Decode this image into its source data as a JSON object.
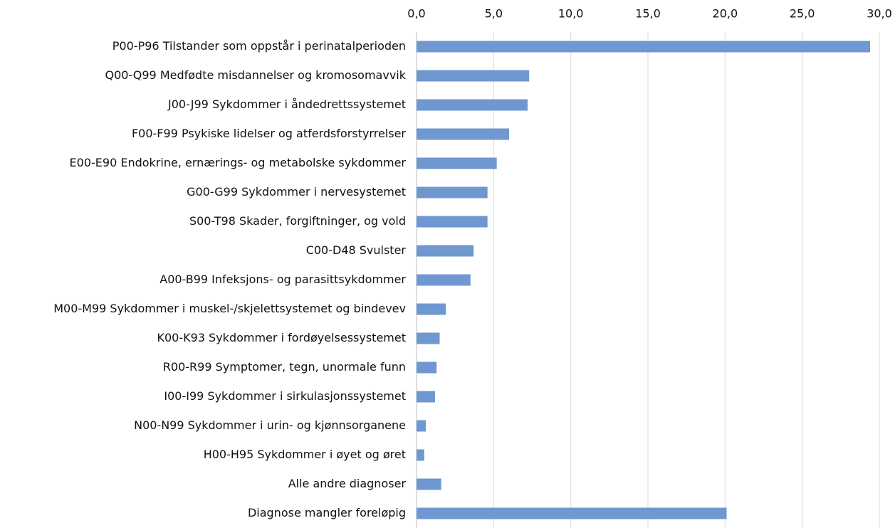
{
  "chart_data": {
    "type": "bar",
    "orientation": "horizontal",
    "categories": [
      "P00-P96 Tilstander som oppstår i perinatalperioden",
      "Q00-Q99 Medfødte misdannelser og kromosomavvik",
      "J00-J99 Sykdommer i åndedrettssystemet",
      "F00-F99 Psykiske lidelser og atferdsforstyrrelser",
      "E00-E90 Endokrine, ernærings- og metabolske sykdommer",
      "G00-G99 Sykdommer i nervesystemet",
      "S00-T98 Skader, forgiftninger, og vold",
      "C00-D48 Svulster",
      "A00-B99 Infeksjons- og parasittsykdommer",
      "M00-M99 Sykdommer i muskel-/skjelettsystemet og bindevev",
      "K00-K93 Sykdommer i fordøyelsessystemet",
      "R00-R99 Symptomer, tegn, unormale funn",
      "I00-I99 Sykdommer i sirkulasjonssystemet",
      "N00-N99 Sykdommer i urin- og kjønnsorganene",
      "H00-H95 Sykdommer i øyet og øret",
      "Alle andre diagnoser",
      "Diagnose mangler foreløpig"
    ],
    "values": [
      29.4,
      7.3,
      7.2,
      6.0,
      5.2,
      4.6,
      4.6,
      3.7,
      3.5,
      1.9,
      1.5,
      1.3,
      1.2,
      0.6,
      0.5,
      1.6,
      20.1
    ],
    "color": "#6f97d0",
    "xlim": [
      0,
      30
    ],
    "xticks": [
      {
        "value": 0,
        "label": "0,0"
      },
      {
        "value": 5,
        "label": "5,0"
      },
      {
        "value": 10,
        "label": "10,0"
      },
      {
        "value": 15,
        "label": "15,0"
      },
      {
        "value": 20,
        "label": "20,0"
      },
      {
        "value": 25,
        "label": "25,0"
      },
      {
        "value": 30,
        "label": "30,0"
      }
    ],
    "grid": true
  }
}
